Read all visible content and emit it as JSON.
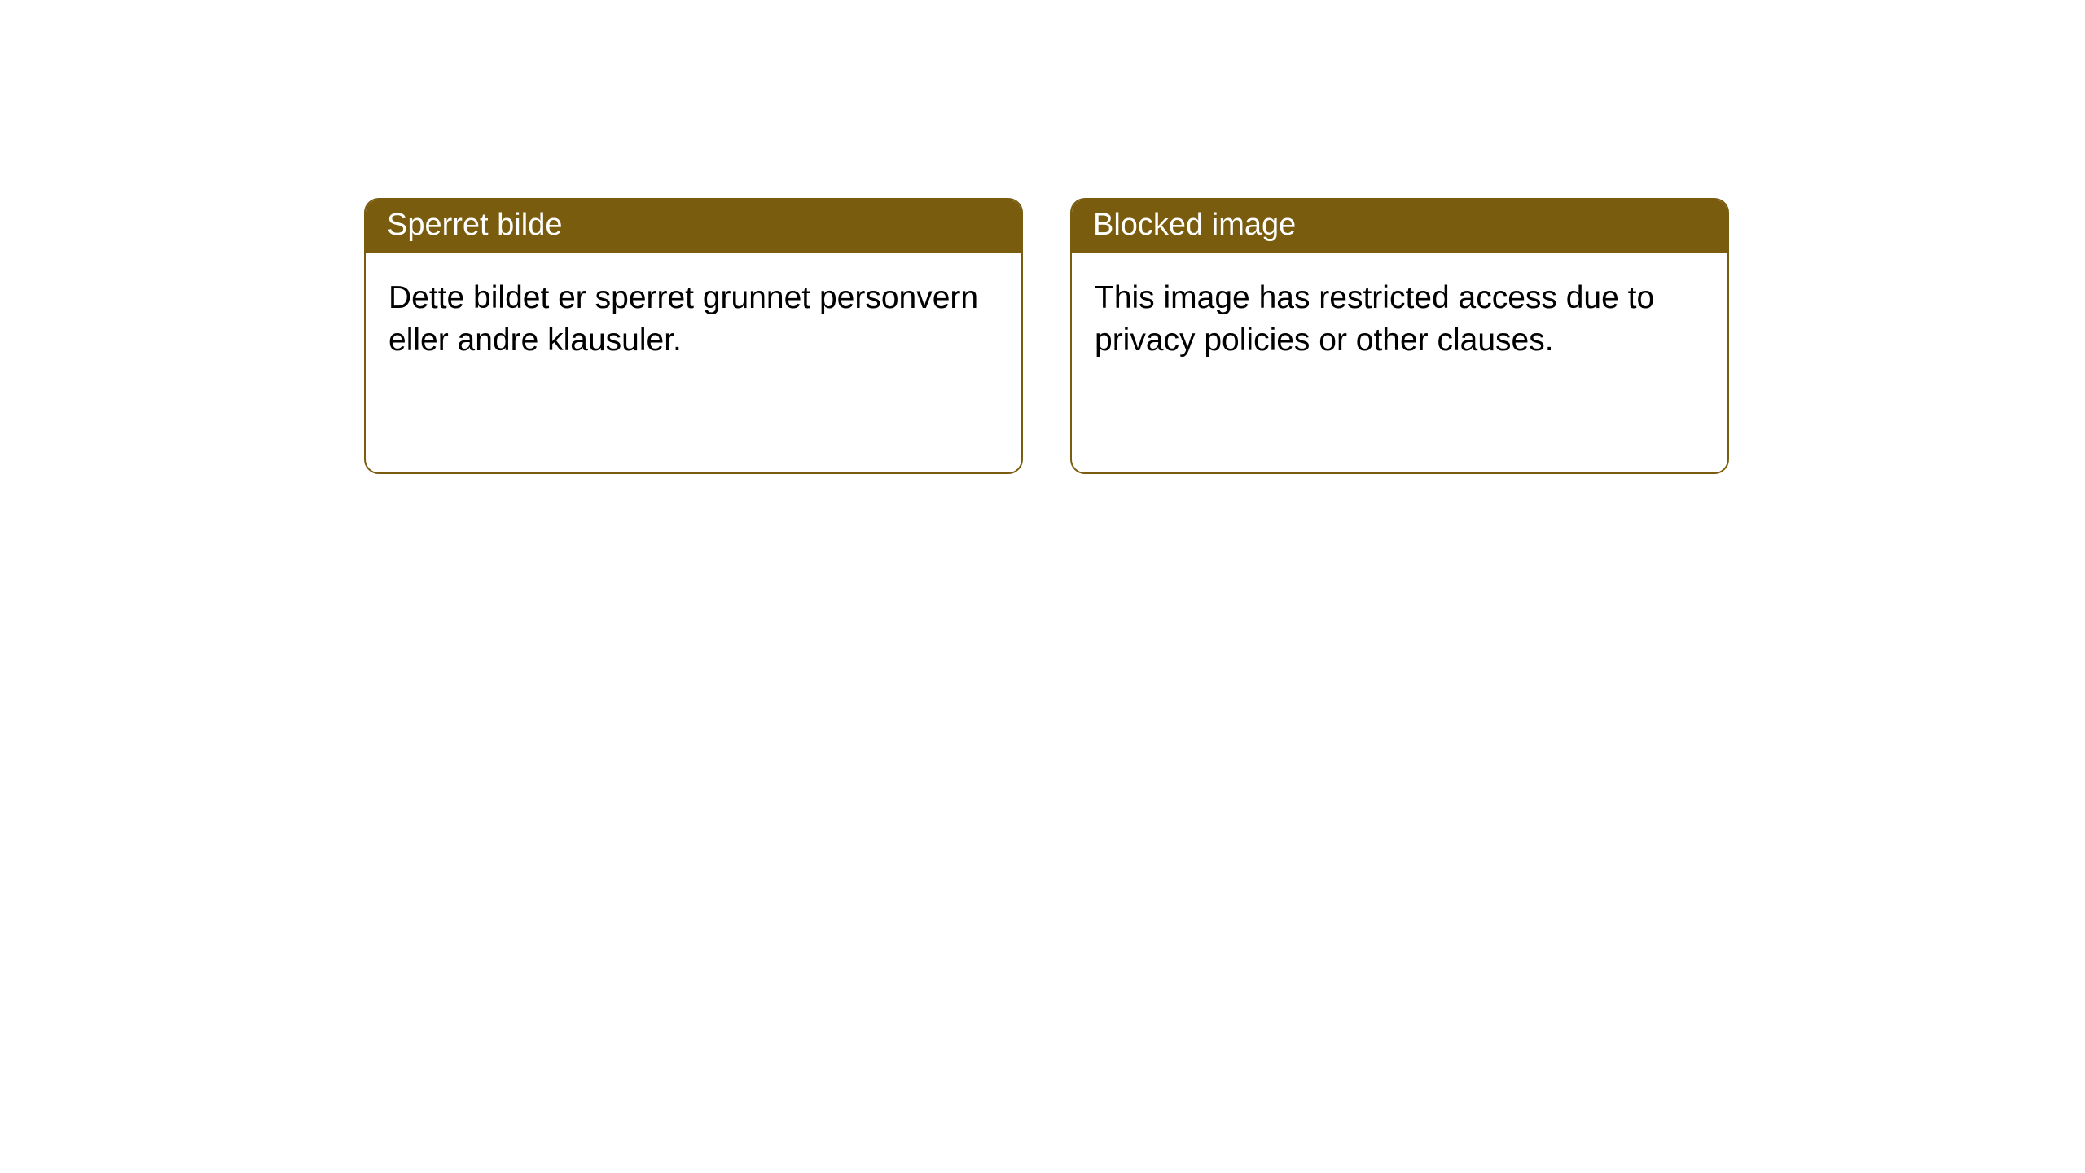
{
  "notices": [
    {
      "title": "Sperret bilde",
      "body": "Dette bildet er sperret grunnet personvern eller andre klausuler."
    },
    {
      "title": "Blocked image",
      "body": "This image has restricted access due to privacy policies or other clauses."
    }
  ],
  "styling": {
    "header_bg": "#7a5c0f",
    "header_text_color": "#ffffff",
    "border_color": "#7a5c0f",
    "body_text_color": "#000000",
    "card_bg": "#ffffff",
    "page_bg": "#ffffff",
    "border_radius": 18,
    "header_fontsize": 38,
    "body_fontsize": 39
  }
}
